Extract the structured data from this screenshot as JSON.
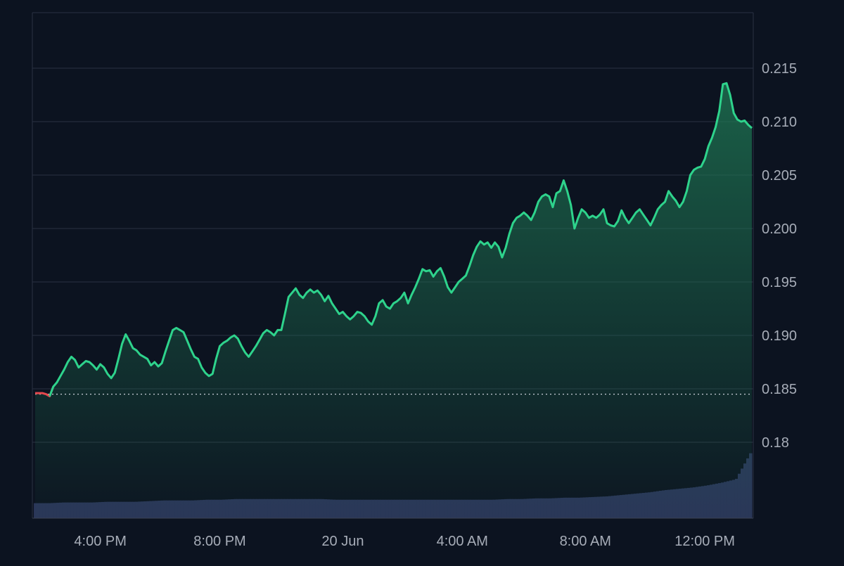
{
  "chart_data": {
    "type": "area",
    "x_tick_labels": [
      "4:00 PM",
      "8:00 PM",
      "20 Jun",
      "4:00 AM",
      "8:00 AM",
      "12:00 PM"
    ],
    "y_tick_labels": [
      "0.215",
      "0.210",
      "0.205",
      "0.200",
      "0.195",
      "0.190",
      "0.185",
      "0.18"
    ],
    "y_ticks": [
      0.215,
      0.21,
      0.205,
      0.2,
      0.195,
      0.19,
      0.185,
      0.18
    ],
    "ylim": [
      0.18,
      0.2202
    ],
    "baseline": 0.1845,
    "grid": true,
    "colors": {
      "background": "#0c1320",
      "up_line": "#2ed38c",
      "down_line": "#e5484d",
      "area_top": "#1f7a55",
      "volume": "#2a3558",
      "grid": "#2a3142",
      "axis_text": "#a7adb8"
    },
    "series": [
      {
        "values": [
          0.1846,
          0.1846,
          0.1846,
          0.1845,
          0.1843,
          0.1852,
          0.1856,
          0.1862,
          0.1868,
          0.1875,
          0.188,
          0.1877,
          0.187,
          0.1873,
          0.1876,
          0.1875,
          0.1872,
          0.1868,
          0.1873,
          0.187,
          0.1864,
          0.186,
          0.1865,
          0.1878,
          0.1892,
          0.1901,
          0.1895,
          0.1888,
          0.1886,
          0.1882,
          0.188,
          0.1878,
          0.1872,
          0.1875,
          0.1871,
          0.1874,
          0.1885,
          0.1895,
          0.1905,
          0.1907,
          0.1905,
          0.1903,
          0.1895,
          0.1887,
          0.188,
          0.1878,
          0.187,
          0.1865,
          0.1862,
          0.1864,
          0.1878,
          0.189,
          0.1893,
          0.1895,
          0.1898,
          0.19,
          0.1897,
          0.189,
          0.1884,
          0.188,
          0.1885,
          0.189,
          0.1896,
          0.1902,
          0.1905,
          0.1903,
          0.19,
          0.1905,
          0.1905,
          0.192,
          0.1936,
          0.194,
          0.1944,
          0.1938,
          0.1935,
          0.194,
          0.1943,
          0.194,
          0.1942,
          0.1938,
          0.1932,
          0.1937,
          0.193,
          0.1925,
          0.192,
          0.1922,
          0.1918,
          0.1915,
          0.1918,
          0.1922,
          0.1921,
          0.1918,
          0.1913,
          0.191,
          0.1918,
          0.193,
          0.1933,
          0.1927,
          0.1925,
          0.193,
          0.1932,
          0.1935,
          0.194,
          0.193,
          0.1938,
          0.1945,
          0.1953,
          0.1962,
          0.196,
          0.1961,
          0.1955,
          0.196,
          0.1963,
          0.1955,
          0.1945,
          0.194,
          0.1945,
          0.195,
          0.1953,
          0.1956,
          0.1965,
          0.1975,
          0.1983,
          0.1988,
          0.1985,
          0.1987,
          0.1982,
          0.1987,
          0.1983,
          0.1973,
          0.1982,
          0.1995,
          0.2005,
          0.201,
          0.2012,
          0.2015,
          0.2012,
          0.2008,
          0.2015,
          0.2025,
          0.203,
          0.2032,
          0.203,
          0.202,
          0.2033,
          0.2035,
          0.2045,
          0.2035,
          0.2022,
          0.2,
          0.201,
          0.2018,
          0.2015,
          0.201,
          0.2012,
          0.201,
          0.2013,
          0.2018,
          0.2005,
          0.2003,
          0.2002,
          0.2007,
          0.2017,
          0.201,
          0.2005,
          0.201,
          0.2015,
          0.2018,
          0.2013,
          0.2008,
          0.2003,
          0.201,
          0.2018,
          0.2022,
          0.2025,
          0.2035,
          0.203,
          0.2026,
          0.202,
          0.2025,
          0.2035,
          0.205,
          0.2055,
          0.2057,
          0.2058,
          0.2065,
          0.2077,
          0.2085,
          0.2095,
          0.211,
          0.2135,
          0.2136,
          0.2125,
          0.2108,
          0.2102,
          0.21,
          0.2101,
          0.2097,
          0.2094
        ]
      }
    ],
    "volume": [
      0.22,
      0.22,
      0.23,
      0.23,
      0.23,
      0.24,
      0.24,
      0.24,
      0.25,
      0.26,
      0.26,
      0.26,
      0.27,
      0.27,
      0.28,
      0.28,
      0.28,
      0.28,
      0.28,
      0.28,
      0.28,
      0.27,
      0.27,
      0.27,
      0.27,
      0.27,
      0.27,
      0.27,
      0.27,
      0.27,
      0.27,
      0.27,
      0.27,
      0.28,
      0.28,
      0.29,
      0.29,
      0.3,
      0.3,
      0.31,
      0.32,
      0.34,
      0.36,
      0.38,
      0.41,
      0.43,
      0.45,
      0.48,
      0.52,
      0.57,
      0.95
    ]
  }
}
